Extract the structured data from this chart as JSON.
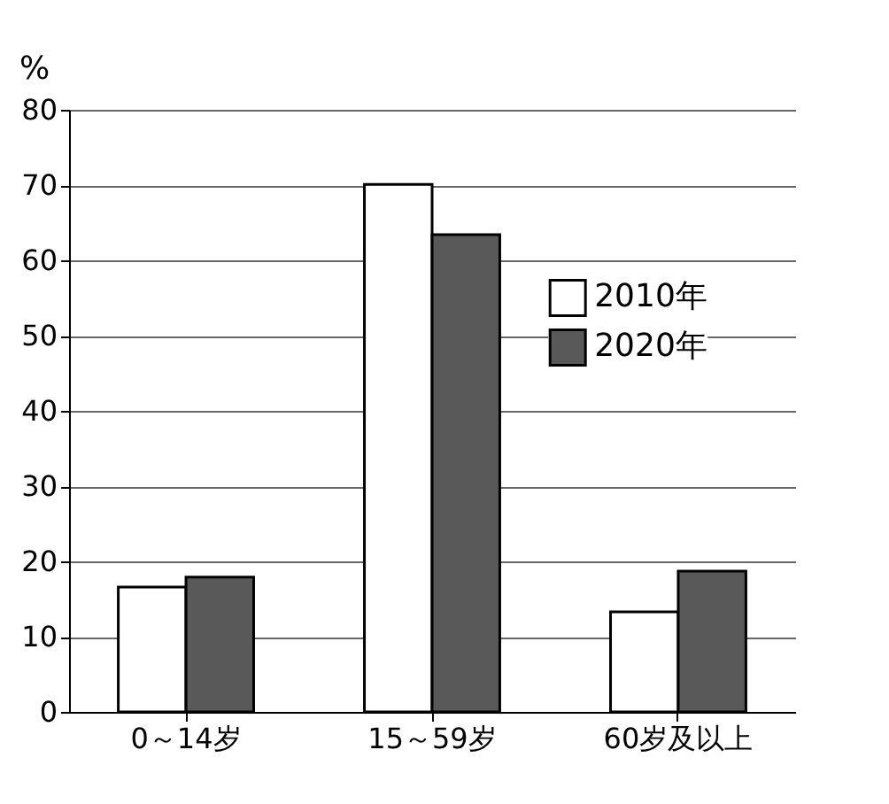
{
  "chart_data": {
    "type": "bar",
    "ylabel": "%",
    "categories": [
      "0～14岁",
      "15～59岁",
      "60岁及以上"
    ],
    "series": [
      {
        "name": "2010年",
        "color": "#ffffff",
        "values": [
          16.6,
          70.1,
          13.3
        ]
      },
      {
        "name": "2020年",
        "color": "#595959",
        "values": [
          17.9,
          63.4,
          18.7
        ]
      }
    ],
    "ylim": [
      0,
      80
    ],
    "yticks": [
      0,
      10,
      20,
      30,
      40,
      50,
      60,
      70,
      80
    ],
    "grid": "y",
    "legend": "right"
  }
}
